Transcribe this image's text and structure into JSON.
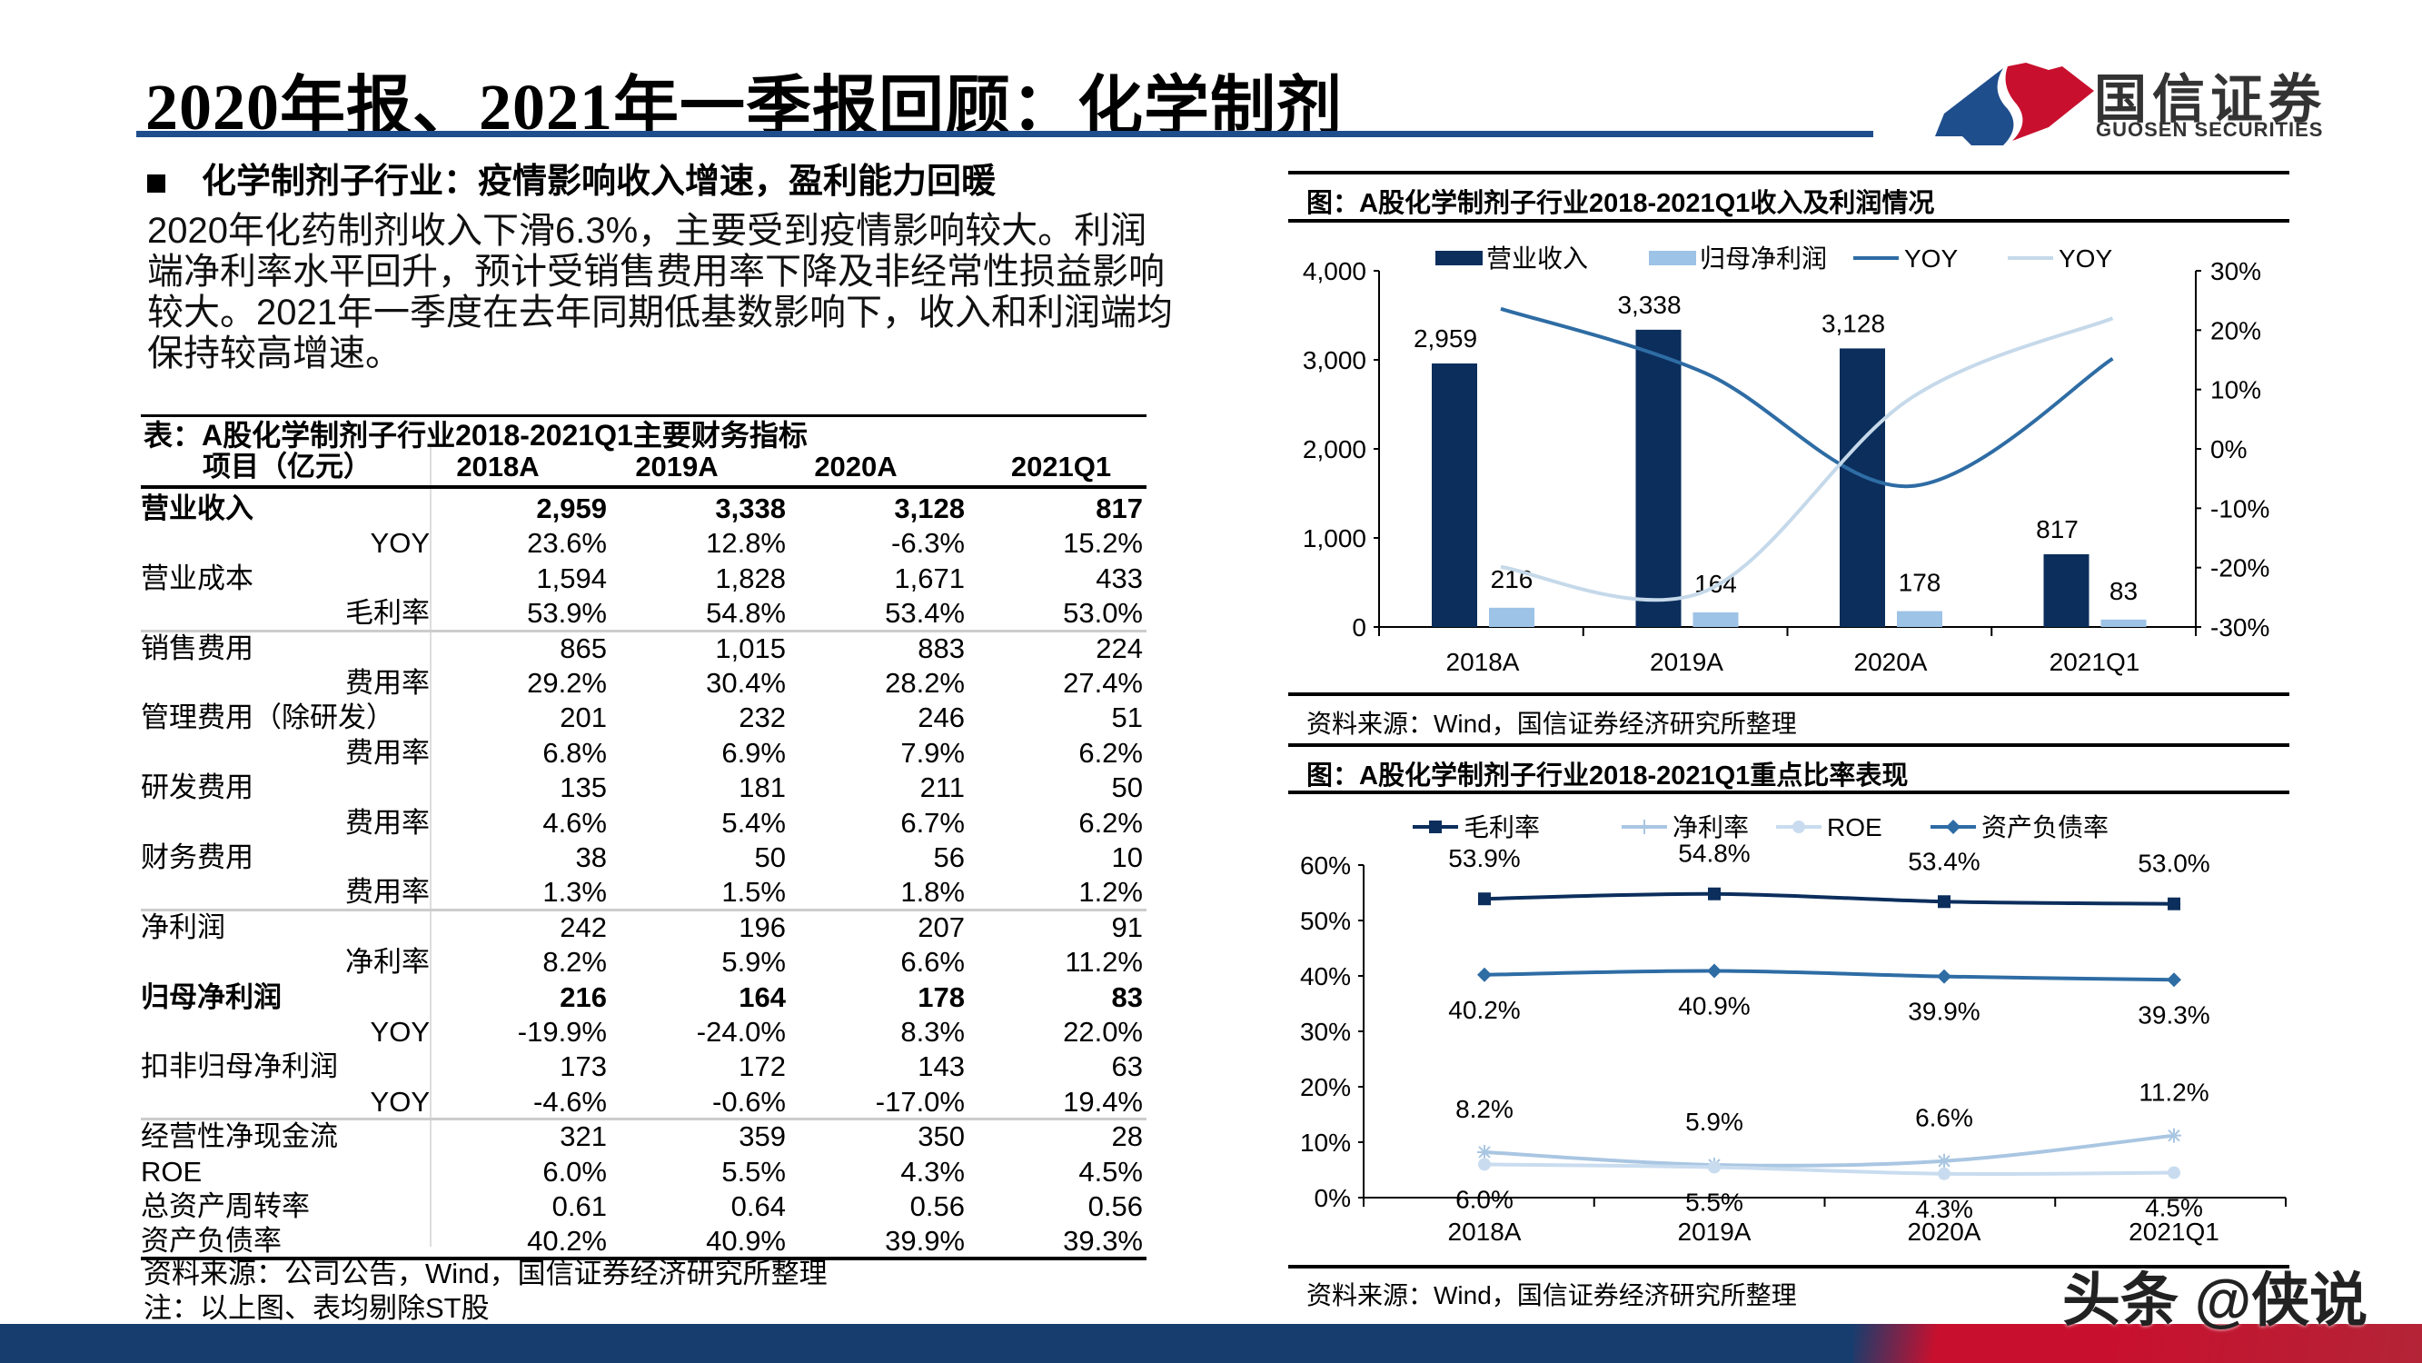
{
  "header": {
    "title": "2020年报、2021年一季报回顾：化学制剂",
    "logo_cn": "国信证券",
    "logo_en": "GUOSEN SECURITIES"
  },
  "colors": {
    "brand_blue": "#1f4e8c",
    "brand_red": "#c8102e",
    "dark_navy": "#0b2e5c",
    "light_blue": "#9dc3e6",
    "yoy_dark": "#2e6ca4",
    "yoy_light": "#c5d9ea"
  },
  "bullet": {
    "heading": "化学制剂子行业：疫情影响收入增速，盈利能力回暖",
    "paragraph": "2020年化药制剂收入下滑6.3%，主要受到疫情影响较大。利润端净利率水平回升，预计受销售费用率下降及非经常性损益影响较大。2021年一季度在去年同期低基数影响下，收入和利润端均保持较高增速。"
  },
  "table": {
    "title": "表：A股化学制剂子行业2018-2021Q1主要财务指标",
    "headers": [
      "项目（亿元）",
      "2018A",
      "2019A",
      "2020A",
      "2021Q1"
    ],
    "rows": [
      {
        "label": "营业收入",
        "indent": false,
        "bold": true,
        "values": [
          "2,959",
          "3,338",
          "3,128",
          "817"
        ]
      },
      {
        "label": "YOY",
        "indent": true,
        "values": [
          "23.6%",
          "12.8%",
          "-6.3%",
          "15.2%"
        ]
      },
      {
        "label": "营业成本",
        "indent": false,
        "values": [
          "1,594",
          "1,828",
          "1,671",
          "433"
        ]
      },
      {
        "label": "毛利率",
        "indent": true,
        "values": [
          "53.9%",
          "54.8%",
          "53.4%",
          "53.0%"
        ]
      },
      {
        "label": "销售费用",
        "indent": false,
        "values": [
          "865",
          "1,015",
          "883",
          "224"
        ]
      },
      {
        "label": "费用率",
        "indent": true,
        "values": [
          "29.2%",
          "30.4%",
          "28.2%",
          "27.4%"
        ]
      },
      {
        "label": "管理费用（除研发）",
        "indent": false,
        "values": [
          "201",
          "232",
          "246",
          "51"
        ]
      },
      {
        "label": "费用率",
        "indent": true,
        "values": [
          "6.8%",
          "6.9%",
          "7.9%",
          "6.2%"
        ]
      },
      {
        "label": "研发费用",
        "indent": false,
        "values": [
          "135",
          "181",
          "211",
          "50"
        ]
      },
      {
        "label": "费用率",
        "indent": true,
        "values": [
          "4.6%",
          "5.4%",
          "6.7%",
          "6.2%"
        ]
      },
      {
        "label": "财务费用",
        "indent": false,
        "values": [
          "38",
          "50",
          "56",
          "10"
        ]
      },
      {
        "label": "费用率",
        "indent": true,
        "values": [
          "1.3%",
          "1.5%",
          "1.8%",
          "1.2%"
        ]
      },
      {
        "label": "净利润",
        "indent": false,
        "values": [
          "242",
          "196",
          "207",
          "91"
        ]
      },
      {
        "label": "净利率",
        "indent": true,
        "values": [
          "8.2%",
          "5.9%",
          "6.6%",
          "11.2%"
        ]
      },
      {
        "label": "归母净利润",
        "indent": false,
        "bold": true,
        "values": [
          "216",
          "164",
          "178",
          "83"
        ]
      },
      {
        "label": "YOY",
        "indent": true,
        "values": [
          "-19.9%",
          "-24.0%",
          "8.3%",
          "22.0%"
        ]
      },
      {
        "label": "扣非归母净利润",
        "indent": false,
        "values": [
          "173",
          "172",
          "143",
          "63"
        ]
      },
      {
        "label": "YOY",
        "indent": true,
        "values": [
          "-4.6%",
          "-0.6%",
          "-17.0%",
          "19.4%"
        ]
      },
      {
        "label": "经营性净现金流",
        "indent": false,
        "values": [
          "321",
          "359",
          "350",
          "28"
        ]
      },
      {
        "label": "ROE",
        "indent": false,
        "values": [
          "6.0%",
          "5.5%",
          "4.3%",
          "4.5%"
        ]
      },
      {
        "label": "总资产周转率",
        "indent": false,
        "values": [
          "0.61",
          "0.64",
          "0.56",
          "0.56"
        ]
      },
      {
        "label": "资产负债率",
        "indent": false,
        "values": [
          "40.2%",
          "40.9%",
          "39.9%",
          "39.3%"
        ]
      }
    ],
    "source": "资料来源：公司公告，Wind，国信证券经济研究所整理",
    "note": "注：以上图、表均剔除ST股"
  },
  "chart_data": [
    {
      "type": "bar+line",
      "title": "图：A股化学制剂子行业2018-2021Q1收入及利润情况",
      "categories": [
        "2018A",
        "2019A",
        "2020A",
        "2021Q1"
      ],
      "ylim": [
        0,
        4000
      ],
      "yticks": [
        "0",
        "1,000",
        "2,000",
        "3,000",
        "4,000"
      ],
      "y2lim": [
        -30,
        30
      ],
      "y2ticks": [
        "-30%",
        "-20%",
        "-10%",
        "0%",
        "10%",
        "20%",
        "30%"
      ],
      "series": [
        {
          "name": "营业收入",
          "type": "bar",
          "axis": "left",
          "values": [
            2959,
            3338,
            3128,
            817
          ],
          "labels": [
            "2,959",
            "3,338",
            "3,128",
            "817"
          ]
        },
        {
          "name": "归母净利润",
          "type": "bar",
          "axis": "left",
          "values": [
            216,
            164,
            178,
            83
          ],
          "labels": [
            "216",
            "164",
            "178",
            "83"
          ]
        },
        {
          "name": "YOY",
          "type": "line",
          "axis": "right",
          "values": [
            23.6,
            12.8,
            -6.3,
            15.2
          ]
        },
        {
          "name": "YOY",
          "type": "line",
          "axis": "right",
          "values": [
            -19.9,
            -24.0,
            8.3,
            22.0
          ]
        }
      ],
      "legend": "top",
      "grid": false,
      "source": "资料来源：Wind，国信证券经济研究所整理"
    },
    {
      "type": "line",
      "title": "图：A股化学制剂子行业2018-2021Q1重点比率表现",
      "categories": [
        "2018A",
        "2019A",
        "2020A",
        "2021Q1"
      ],
      "ylim": [
        0,
        60
      ],
      "yticks": [
        "0%",
        "10%",
        "20%",
        "30%",
        "40%",
        "50%",
        "60%"
      ],
      "series": [
        {
          "name": "毛利率",
          "marker": "square",
          "values": [
            53.9,
            54.8,
            53.4,
            53.0
          ],
          "labels": [
            "53.9%",
            "54.8%",
            "53.4%",
            "53.0%"
          ]
        },
        {
          "name": "净利率",
          "marker": "star",
          "values": [
            8.2,
            5.9,
            6.6,
            11.2
          ],
          "labels": [
            "8.2%",
            "5.9%",
            "6.6%",
            "11.2%"
          ]
        },
        {
          "name": "ROE",
          "marker": "circle",
          "values": [
            6.0,
            5.5,
            4.3,
            4.5
          ],
          "labels": [
            "6.0%",
            "5.5%",
            "4.3%",
            "4.5%"
          ]
        },
        {
          "name": "资产负债率",
          "marker": "diamond",
          "values": [
            40.2,
            40.9,
            39.9,
            39.3
          ],
          "labels": [
            "40.2%",
            "40.9%",
            "39.9%",
            "39.3%"
          ]
        }
      ],
      "legend": "top",
      "grid": false,
      "source": "资料来源：Wind，国信证券经济研究所整理"
    }
  ],
  "watermark": "头条 @侠说"
}
